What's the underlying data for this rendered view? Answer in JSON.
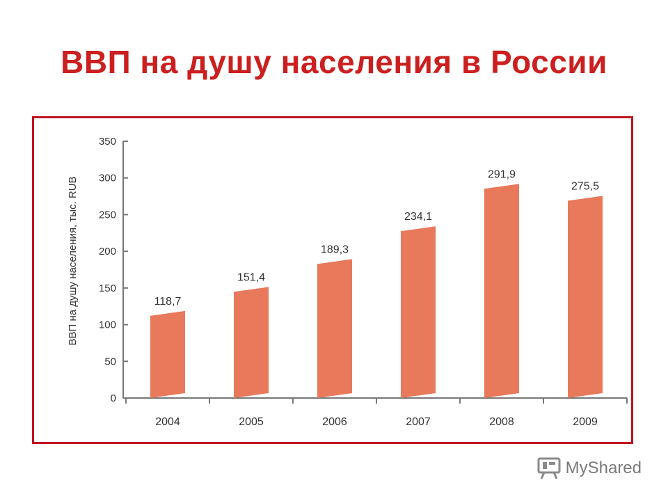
{
  "slide": {
    "title": "ВВП на душу населения в России",
    "title_color": "#cc1f1f",
    "frame_color": "#c1121f"
  },
  "chart_data": {
    "type": "bar",
    "title": "",
    "xlabel": "",
    "ylabel": "ВВП на душу населения, тыс. RUB",
    "categories": [
      "2004",
      "2005",
      "2006",
      "2007",
      "2008",
      "2009"
    ],
    "values": [
      118.7,
      151.4,
      189.3,
      234.1,
      291.9,
      275.5
    ],
    "value_labels": [
      "118,7",
      "151,4",
      "189,3",
      "234,1",
      "291,9",
      "275,5"
    ],
    "ylim": [
      0,
      350
    ],
    "yticks": [
      0,
      50,
      100,
      150,
      200,
      250,
      300,
      350
    ],
    "bar_color": "#e8795a",
    "grid": false,
    "legend": "none"
  },
  "watermark": {
    "text_my": "My",
    "text_shared": "Shared",
    "icon": "presentation-board-icon"
  }
}
